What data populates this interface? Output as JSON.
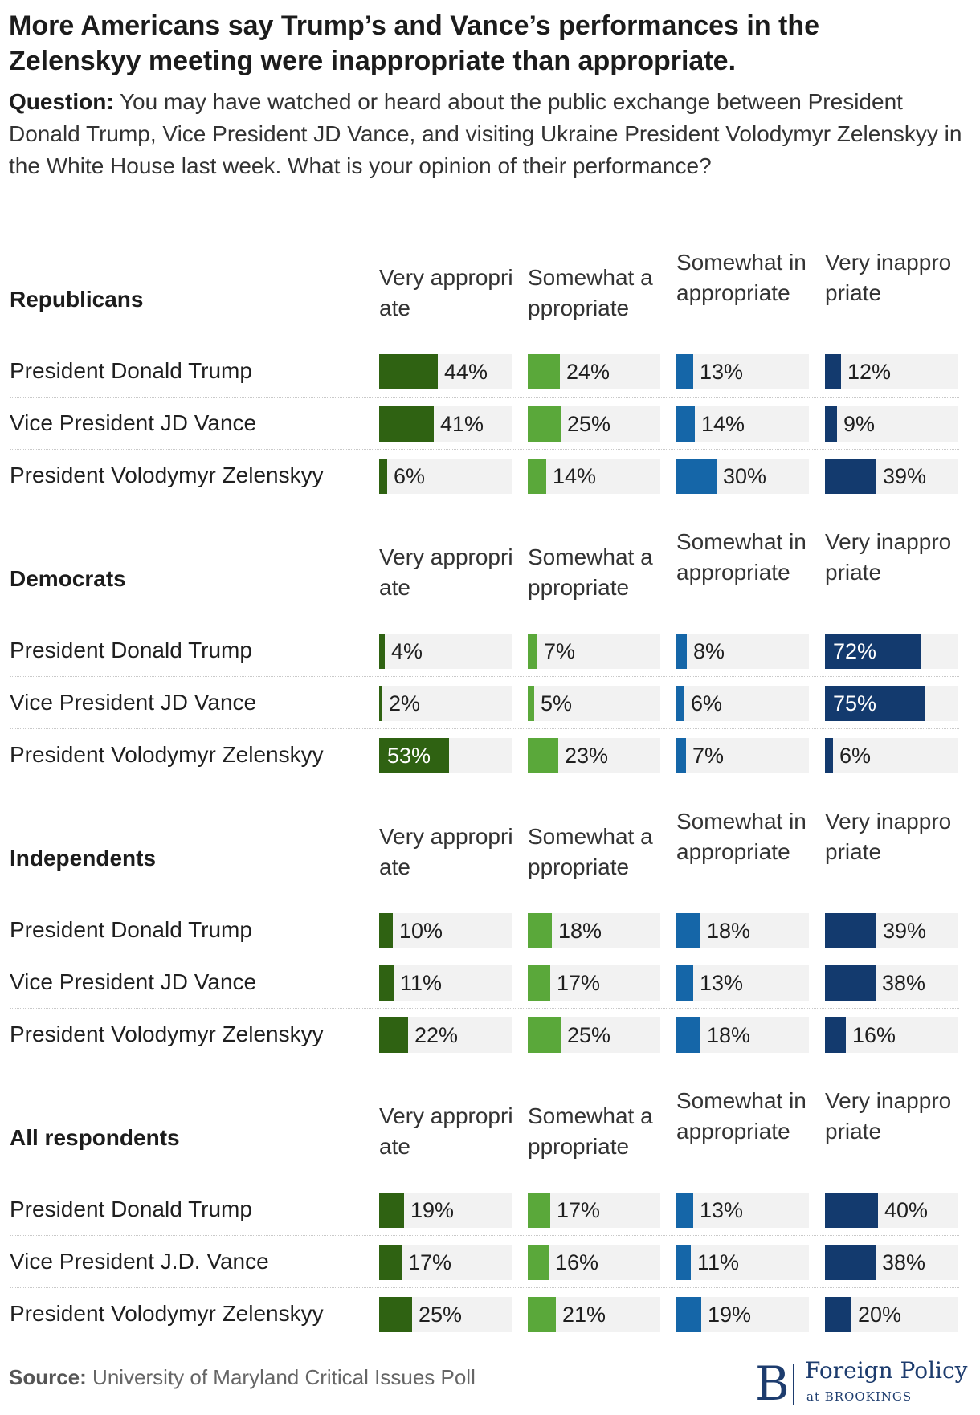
{
  "title": "More Americans say Trump’s and Vance’s performances in the Zelenskyy meeting were inappropriate than appropriate.",
  "question_label": "Question:",
  "question_text": "You may have watched or heard about the public exchange between President Donald Trump, Vice President JD Vance, and visiting Ukraine President Volodymyr Zelenskyy in the White House last week. What is your opinion of their performance?",
  "source_label": "Source:",
  "source_text": "University of Maryland Critical Issues Poll",
  "logo": {
    "mark": "B",
    "name": "Foreign Policy",
    "sub": "at BROOKINGS"
  },
  "colors": {
    "very_appropriate": "#2f6212",
    "somewhat_appropriate": "#5aa83a",
    "somewhat_inappropriate": "#1566a8",
    "very_inappropriate": "#133a6e",
    "cell_bg": "#f2f2f2"
  },
  "chart_data": {
    "type": "table",
    "value_suffix": "%",
    "columns": [
      "Very appropriate",
      "Somewhat appropriate",
      "Somewhat inappropriate",
      "Very inappropriate"
    ],
    "groups": [
      {
        "name": "Republicans",
        "rows": [
          {
            "label": "President Donald Trump",
            "values": [
              44,
              24,
              13,
              12
            ]
          },
          {
            "label": "Vice President JD Vance",
            "values": [
              41,
              25,
              14,
              9
            ]
          },
          {
            "label": "President Volodymyr Zelenskyy",
            "values": [
              6,
              14,
              30,
              39
            ]
          }
        ]
      },
      {
        "name": "Democrats",
        "rows": [
          {
            "label": "President Donald Trump",
            "values": [
              4,
              7,
              8,
              72
            ]
          },
          {
            "label": "Vice President JD Vance",
            "values": [
              2,
              5,
              6,
              75
            ]
          },
          {
            "label": "President Volodymyr Zelenskyy",
            "values": [
              53,
              23,
              7,
              6
            ]
          }
        ]
      },
      {
        "name": "Independents",
        "rows": [
          {
            "label": "President Donald Trump",
            "values": [
              10,
              18,
              18,
              39
            ]
          },
          {
            "label": "Vice President JD Vance",
            "values": [
              11,
              17,
              13,
              38
            ]
          },
          {
            "label": "President Volodymyr Zelenskyy",
            "values": [
              22,
              25,
              18,
              16
            ]
          }
        ]
      },
      {
        "name": "All respondents",
        "rows": [
          {
            "label": "President Donald Trump",
            "values": [
              19,
              17,
              13,
              40
            ]
          },
          {
            "label": "Vice President J.D. Vance",
            "values": [
              17,
              16,
              11,
              38
            ]
          },
          {
            "label": "President Volodymyr Zelenskyy",
            "values": [
              25,
              21,
              19,
              20
            ]
          }
        ]
      }
    ]
  }
}
